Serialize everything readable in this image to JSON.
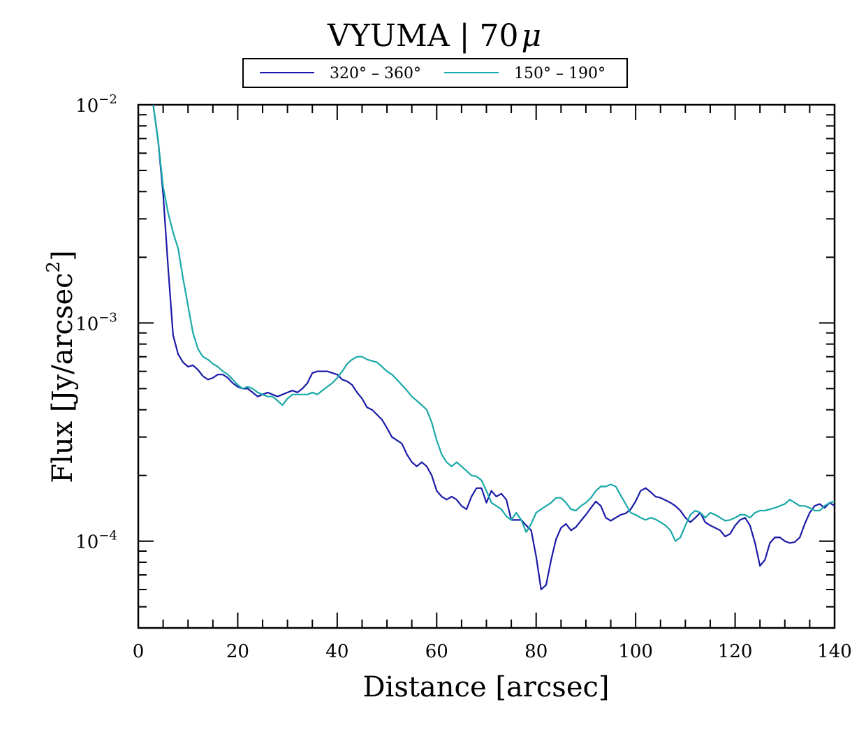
{
  "chart_data": {
    "type": "line",
    "title": "VYUMA | 70μ",
    "title_main": "VYUMA | 70",
    "title_suffix": "μ",
    "xlabel": "Distance [arcsec]",
    "ylabel": "Flux [Jy/arcsec²]",
    "ylabel_main": "Flux [Jy/arcsec",
    "ylabel_sup": "2",
    "ylabel_end": "]",
    "xlim": [
      0,
      140
    ],
    "ylim": [
      4e-05,
      0.01
    ],
    "yscale": "log",
    "xticks": [
      0,
      20,
      40,
      60,
      80,
      100,
      120,
      140
    ],
    "xtick_labels": [
      "0",
      "20",
      "40",
      "60",
      "80",
      "100",
      "120",
      "140"
    ],
    "yticks": [
      {
        "value": 0.01,
        "base": "10",
        "exp": "−2"
      },
      {
        "value": 0.001,
        "base": "10",
        "exp": "−3"
      },
      {
        "value": 0.0001,
        "base": "10",
        "exp": "−4"
      }
    ],
    "legend_position": "top-center",
    "series": [
      {
        "name": "320° – 360°",
        "color": "#1a1aa8",
        "points": [
          [
            3,
            0.0102
          ],
          [
            4,
            0.0068
          ],
          [
            5,
            0.0039
          ],
          [
            6,
            0.0018
          ],
          [
            7,
            0.00088
          ],
          [
            8,
            0.00072
          ],
          [
            9,
            0.00066
          ],
          [
            10,
            0.00063
          ],
          [
            11,
            0.00064
          ],
          [
            12,
            0.00061
          ],
          [
            13,
            0.00057
          ],
          [
            14,
            0.00055
          ],
          [
            15,
            0.00056
          ],
          [
            16,
            0.00058
          ],
          [
            17,
            0.00058
          ],
          [
            18,
            0.00056
          ],
          [
            19,
            0.00053
          ],
          [
            20,
            0.00051
          ],
          [
            21,
            0.0005
          ],
          [
            22,
            0.0005
          ],
          [
            23,
            0.00048
          ],
          [
            24,
            0.00046
          ],
          [
            25,
            0.00047
          ],
          [
            26,
            0.00048
          ],
          [
            27,
            0.00047
          ],
          [
            28,
            0.00046
          ],
          [
            29,
            0.00047
          ],
          [
            30,
            0.00048
          ],
          [
            31,
            0.00049
          ],
          [
            32,
            0.00048
          ],
          [
            33,
            0.0005
          ],
          [
            34,
            0.00053
          ],
          [
            35,
            0.00059
          ],
          [
            36,
            0.0006
          ],
          [
            37,
            0.0006
          ],
          [
            38,
            0.0006
          ],
          [
            39,
            0.00059
          ],
          [
            40,
            0.00058
          ],
          [
            41,
            0.00055
          ],
          [
            42,
            0.00054
          ],
          [
            43,
            0.00052
          ],
          [
            44,
            0.00048
          ],
          [
            45,
            0.00045
          ],
          [
            46,
            0.00041
          ],
          [
            47,
            0.0004
          ],
          [
            48,
            0.00038
          ],
          [
            49,
            0.00036
          ],
          [
            50,
            0.00033
          ],
          [
            51,
            0.0003
          ],
          [
            52,
            0.00029
          ],
          [
            53,
            0.00028
          ],
          [
            54,
            0.00025
          ],
          [
            55,
            0.00023
          ],
          [
            56,
            0.00022
          ],
          [
            57,
            0.00023
          ],
          [
            58,
            0.00022
          ],
          [
            59,
            0.0002
          ],
          [
            60,
            0.00017
          ],
          [
            61,
            0.00016
          ],
          [
            62,
            0.000155
          ],
          [
            63,
            0.00016
          ],
          [
            64,
            0.000155
          ],
          [
            65,
            0.000145
          ],
          [
            66,
            0.00014
          ],
          [
            67,
            0.00016
          ],
          [
            68,
            0.000175
          ],
          [
            69,
            0.000175
          ],
          [
            70,
            0.00015
          ],
          [
            71,
            0.00017
          ],
          [
            72,
            0.00016
          ],
          [
            73,
            0.000165
          ],
          [
            74,
            0.000155
          ],
          [
            75,
            0.000125
          ],
          [
            76,
            0.000125
          ],
          [
            77,
            0.000125
          ],
          [
            78,
            0.000118
          ],
          [
            79,
            0.000112
          ],
          [
            80,
            8.5e-05
          ],
          [
            81,
            6e-05
          ],
          [
            82,
            6.3e-05
          ],
          [
            83,
            8.2e-05
          ],
          [
            84,
            0.000102
          ],
          [
            85,
            0.000115
          ],
          [
            86,
            0.00012
          ],
          [
            87,
            0.000112
          ],
          [
            88,
            0.000116
          ],
          [
            89,
            0.000124
          ],
          [
            90,
            0.000132
          ],
          [
            91,
            0.000142
          ],
          [
            92,
            0.000152
          ],
          [
            93,
            0.000145
          ],
          [
            94,
            0.000128
          ],
          [
            95,
            0.000124
          ],
          [
            96,
            0.000128
          ],
          [
            97,
            0.000132
          ],
          [
            98,
            0.000134
          ],
          [
            99,
            0.00014
          ],
          [
            100,
            0.000152
          ],
          [
            101,
            0.00017
          ],
          [
            102,
            0.000175
          ],
          [
            103,
            0.000168
          ],
          [
            104,
            0.00016
          ],
          [
            105,
            0.000158
          ],
          [
            106,
            0.000154
          ],
          [
            107,
            0.00015
          ],
          [
            108,
            0.000145
          ],
          [
            109,
            0.000138
          ],
          [
            110,
            0.000128
          ],
          [
            111,
            0.000122
          ],
          [
            112,
            0.000128
          ],
          [
            113,
            0.000135
          ],
          [
            114,
            0.000122
          ],
          [
            115,
            0.000118
          ],
          [
            116,
            0.000115
          ],
          [
            117,
            0.000112
          ],
          [
            118,
            0.000105
          ],
          [
            119,
            0.000108
          ],
          [
            120,
            0.000118
          ],
          [
            121,
            0.000125
          ],
          [
            122,
            0.000128
          ],
          [
            123,
            0.000118
          ],
          [
            124,
            9.8e-05
          ],
          [
            125,
            7.7e-05
          ],
          [
            126,
            8.2e-05
          ],
          [
            127,
            9.8e-05
          ],
          [
            128,
            0.000104
          ],
          [
            129,
            0.000104
          ],
          [
            130,
            0.0001
          ],
          [
            131,
            9.8e-05
          ],
          [
            132,
            9.9e-05
          ],
          [
            133,
            0.000104
          ],
          [
            134,
            0.00012
          ],
          [
            135,
            0.000135
          ],
          [
            136,
            0.000145
          ],
          [
            137,
            0.000148
          ],
          [
            138,
            0.000142
          ],
          [
            139,
            0.00015
          ],
          [
            140,
            0.000145
          ]
        ]
      },
      {
        "name": "150° – 190°",
        "color": "#1aa8a8",
        "points": [
          [
            3,
            0.0102
          ],
          [
            4,
            0.0068
          ],
          [
            5,
            0.0042
          ],
          [
            6,
            0.0032
          ],
          [
            7,
            0.0026
          ],
          [
            8,
            0.0022
          ],
          [
            9,
            0.0016
          ],
          [
            10,
            0.0012
          ],
          [
            11,
            0.0009
          ],
          [
            12,
            0.00076
          ],
          [
            13,
            0.0007
          ],
          [
            14,
            0.00068
          ],
          [
            15,
            0.00065
          ],
          [
            16,
            0.00063
          ],
          [
            17,
            0.0006
          ],
          [
            18,
            0.00058
          ],
          [
            19,
            0.00055
          ],
          [
            20,
            0.00052
          ],
          [
            21,
            0.0005
          ],
          [
            22,
            0.00051
          ],
          [
            23,
            0.0005
          ],
          [
            24,
            0.00048
          ],
          [
            25,
            0.00047
          ],
          [
            26,
            0.00046
          ],
          [
            27,
            0.00046
          ],
          [
            28,
            0.00044
          ],
          [
            29,
            0.00042
          ],
          [
            30,
            0.00045
          ],
          [
            31,
            0.00047
          ],
          [
            32,
            0.00047
          ],
          [
            33,
            0.00047
          ],
          [
            34,
            0.00047
          ],
          [
            35,
            0.00048
          ],
          [
            36,
            0.00047
          ],
          [
            37,
            0.00049
          ],
          [
            38,
            0.00051
          ],
          [
            39,
            0.00053
          ],
          [
            40,
            0.00056
          ],
          [
            41,
            0.0006
          ],
          [
            42,
            0.00065
          ],
          [
            43,
            0.00068
          ],
          [
            44,
            0.0007
          ],
          [
            45,
            0.0007
          ],
          [
            46,
            0.00068
          ],
          [
            47,
            0.00067
          ],
          [
            48,
            0.00066
          ],
          [
            49,
            0.00063
          ],
          [
            50,
            0.0006
          ],
          [
            51,
            0.00058
          ],
          [
            52,
            0.00055
          ],
          [
            53,
            0.00052
          ],
          [
            54,
            0.00049
          ],
          [
            55,
            0.00046
          ],
          [
            56,
            0.00044
          ],
          [
            57,
            0.00042
          ],
          [
            58,
            0.0004
          ],
          [
            59,
            0.00035
          ],
          [
            60,
            0.00029
          ],
          [
            61,
            0.00025
          ],
          [
            62,
            0.00023
          ],
          [
            63,
            0.00022
          ],
          [
            64,
            0.00023
          ],
          [
            65,
            0.00022
          ],
          [
            66,
            0.00021
          ],
          [
            67,
            0.0002
          ],
          [
            68,
            0.000198
          ],
          [
            69,
            0.00019
          ],
          [
            70,
            0.00017
          ],
          [
            71,
            0.00015
          ],
          [
            72,
            0.000145
          ],
          [
            73,
            0.00014
          ],
          [
            74,
            0.00013
          ],
          [
            75,
            0.000125
          ],
          [
            76,
            0.000135
          ],
          [
            77,
            0.000125
          ],
          [
            78,
            0.00011
          ],
          [
            79,
            0.00012
          ],
          [
            80,
            0.000135
          ],
          [
            81,
            0.00014
          ],
          [
            82,
            0.000145
          ],
          [
            83,
            0.00015
          ],
          [
            84,
            0.000158
          ],
          [
            85,
            0.000158
          ],
          [
            86,
            0.00015
          ],
          [
            87,
            0.00014
          ],
          [
            88,
            0.000138
          ],
          [
            89,
            0.000145
          ],
          [
            90,
            0.00015
          ],
          [
            91,
            0.000158
          ],
          [
            92,
            0.00017
          ],
          [
            93,
            0.000178
          ],
          [
            94,
            0.000178
          ],
          [
            95,
            0.000182
          ],
          [
            96,
            0.000178
          ],
          [
            97,
            0.000162
          ],
          [
            98,
            0.000148
          ],
          [
            99,
            0.000135
          ],
          [
            100,
            0.000132
          ],
          [
            101,
            0.000128
          ],
          [
            102,
            0.000125
          ],
          [
            103,
            0.000128
          ],
          [
            104,
            0.000126
          ],
          [
            105,
            0.000122
          ],
          [
            106,
            0.000118
          ],
          [
            107,
            0.000112
          ],
          [
            108,
            0.0001
          ],
          [
            109,
            0.000104
          ],
          [
            110,
            0.000118
          ],
          [
            111,
            0.000132
          ],
          [
            112,
            0.000138
          ],
          [
            113,
            0.000135
          ],
          [
            114,
            0.000128
          ],
          [
            115,
            0.000135
          ],
          [
            116,
            0.000132
          ],
          [
            117,
            0.000128
          ],
          [
            118,
            0.000124
          ],
          [
            119,
            0.000125
          ],
          [
            120,
            0.000128
          ],
          [
            121,
            0.000132
          ],
          [
            122,
            0.000132
          ],
          [
            123,
            0.000128
          ],
          [
            124,
            0.000135
          ],
          [
            125,
            0.000138
          ],
          [
            126,
            0.000138
          ],
          [
            127,
            0.00014
          ],
          [
            128,
            0.000142
          ],
          [
            129,
            0.000145
          ],
          [
            130,
            0.000148
          ],
          [
            131,
            0.000155
          ],
          [
            132,
            0.00015
          ],
          [
            133,
            0.000145
          ],
          [
            134,
            0.000145
          ],
          [
            135,
            0.000142
          ],
          [
            136,
            0.000138
          ],
          [
            137,
            0.000138
          ],
          [
            138,
            0.000145
          ],
          [
            139,
            0.00015
          ],
          [
            140,
            0.000152
          ]
        ]
      }
    ]
  }
}
